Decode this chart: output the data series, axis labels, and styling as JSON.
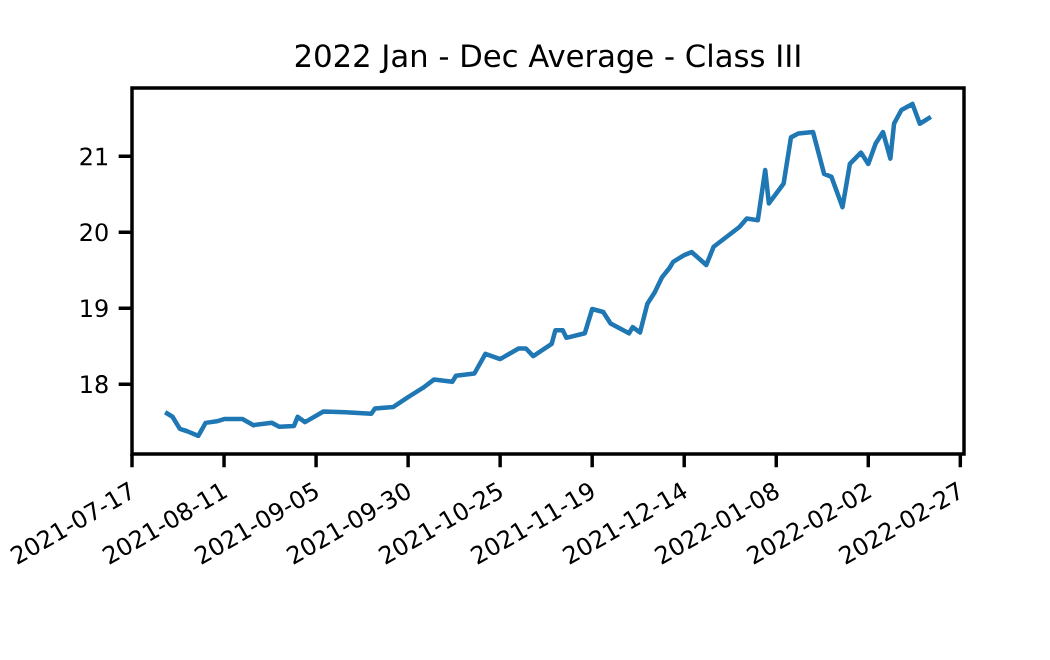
{
  "chart_data": {
    "type": "line",
    "title": "2022 Jan - Dec Average - Class III",
    "x": [
      "2021-07-26",
      "2021-07-28",
      "2021-07-30",
      "2021-08-01",
      "2021-08-04",
      "2021-08-06",
      "2021-08-09",
      "2021-08-11",
      "2021-08-16",
      "2021-08-19",
      "2021-08-24",
      "2021-08-26",
      "2021-08-30",
      "2021-08-31",
      "2021-09-02",
      "2021-09-07",
      "2021-09-13",
      "2021-09-20",
      "2021-09-21",
      "2021-09-26",
      "2021-09-30",
      "2021-10-04",
      "2021-10-07",
      "2021-10-12",
      "2021-10-13",
      "2021-10-18",
      "2021-10-21",
      "2021-10-25",
      "2021-10-30",
      "2021-11-01",
      "2021-11-03",
      "2021-11-08",
      "2021-11-09",
      "2021-11-11",
      "2021-11-12",
      "2021-11-17",
      "2021-11-19",
      "2021-11-22",
      "2021-11-24",
      "2021-11-29",
      "2021-11-30",
      "2021-12-02",
      "2021-12-04",
      "2021-12-06",
      "2021-12-08",
      "2021-12-10",
      "2021-12-11",
      "2021-12-14",
      "2021-12-16",
      "2021-12-20",
      "2021-12-22",
      "2021-12-29",
      "2021-12-31",
      "2022-01-03",
      "2022-01-05",
      "2022-01-06",
      "2022-01-10",
      "2022-01-12",
      "2022-01-14",
      "2022-01-18",
      "2022-01-21",
      "2022-01-23",
      "2022-01-26",
      "2022-01-28",
      "2022-01-31",
      "2022-02-02",
      "2022-02-04",
      "2022-02-06",
      "2022-02-08",
      "2022-02-09",
      "2022-02-11",
      "2022-02-14",
      "2022-02-16",
      "2022-02-19"
    ],
    "series": [
      {
        "color": "#1f77b4",
        "values": [
          17.63,
          17.57,
          17.41,
          17.38,
          17.32,
          17.49,
          17.51,
          17.54,
          17.54,
          17.46,
          17.49,
          17.44,
          17.45,
          17.57,
          17.5,
          17.64,
          17.63,
          17.61,
          17.68,
          17.7,
          17.83,
          17.95,
          18.06,
          18.03,
          18.11,
          18.14,
          18.4,
          18.33,
          18.47,
          18.47,
          18.37,
          18.53,
          18.71,
          18.71,
          18.61,
          18.67,
          18.99,
          18.95,
          18.8,
          18.67,
          18.75,
          18.68,
          19.06,
          19.21,
          19.41,
          19.53,
          19.61,
          19.7,
          19.74,
          19.57,
          19.81,
          20.07,
          20.18,
          20.16,
          20.82,
          20.38,
          20.64,
          21.25,
          21.3,
          21.32,
          20.77,
          20.73,
          20.33,
          20.9,
          21.05,
          20.9,
          21.17,
          21.32,
          20.97,
          21.43,
          21.61,
          21.69,
          21.43,
          21.52
        ]
      }
    ],
    "xlim": [
      "2021-07-17",
      "2022-02-28"
    ],
    "xticks": [
      "2021-07-17",
      "2021-08-11",
      "2021-09-05",
      "2021-09-30",
      "2021-10-25",
      "2021-11-19",
      "2021-12-14",
      "2022-01-08",
      "2022-02-02",
      "2022-02-27"
    ],
    "ylim": [
      17.08,
      21.9
    ],
    "yticks": [
      18,
      19,
      20,
      21
    ],
    "grid": false
  }
}
